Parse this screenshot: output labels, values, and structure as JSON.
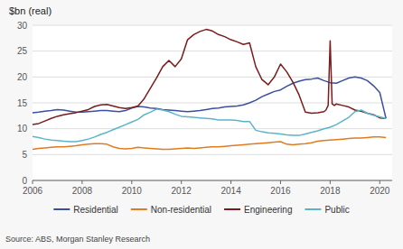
{
  "chart_data": {
    "type": "line",
    "title": "$bn (real)",
    "source": "Source: ABS, Morgan Stanley Research",
    "xlim": [
      2006,
      2020.5
    ],
    "ylim": [
      0,
      30
    ],
    "xticks": [
      2006,
      2008,
      2010,
      2012,
      2014,
      2016,
      2018,
      2020
    ],
    "yticks": [
      0,
      5,
      10,
      15,
      20,
      25,
      30
    ],
    "grid": true,
    "legend": "bottom",
    "series": [
      {
        "name": "Residential",
        "color": "#3a4fa0",
        "x": [
          2006.0,
          2006.25,
          2006.5,
          2006.75,
          2007.0,
          2007.25,
          2007.5,
          2007.75,
          2008.0,
          2008.25,
          2008.5,
          2008.75,
          2009.0,
          2009.25,
          2009.5,
          2009.75,
          2010.0,
          2010.25,
          2010.5,
          2010.75,
          2011.0,
          2011.25,
          2011.5,
          2011.75,
          2012.0,
          2012.25,
          2012.5,
          2012.75,
          2013.0,
          2013.25,
          2013.5,
          2013.75,
          2014.0,
          2014.25,
          2014.5,
          2014.75,
          2015.0,
          2015.25,
          2015.5,
          2015.75,
          2016.0,
          2016.25,
          2016.5,
          2016.75,
          2017.0,
          2017.25,
          2017.5,
          2017.75,
          2018.0,
          2018.25,
          2018.5,
          2018.75,
          2019.0,
          2019.25,
          2019.5,
          2019.75,
          2020.0,
          2020.25
        ],
        "values": [
          13.1,
          13.2,
          13.4,
          13.5,
          13.7,
          13.6,
          13.4,
          13.2,
          13.2,
          13.3,
          13.4,
          13.5,
          13.5,
          13.4,
          13.3,
          13.5,
          14.0,
          14.3,
          14.2,
          14.0,
          13.9,
          13.7,
          13.6,
          13.5,
          13.4,
          13.3,
          13.4,
          13.5,
          13.7,
          13.9,
          14.0,
          14.2,
          14.3,
          14.4,
          14.6,
          15.0,
          15.5,
          16.2,
          16.7,
          17.2,
          17.5,
          18.2,
          18.8,
          19.2,
          19.5,
          19.6,
          19.8,
          19.3,
          18.9,
          18.8,
          19.3,
          19.8,
          20.0,
          19.8,
          19.3,
          18.3,
          17.0,
          12.0
        ]
      },
      {
        "name": "Non-residential",
        "color": "#e07b20",
        "x": [
          2006.0,
          2006.25,
          2006.5,
          2006.75,
          2007.0,
          2007.25,
          2007.5,
          2007.75,
          2008.0,
          2008.25,
          2008.5,
          2008.75,
          2009.0,
          2009.25,
          2009.5,
          2009.75,
          2010.0,
          2010.25,
          2010.5,
          2010.75,
          2011.0,
          2011.25,
          2011.5,
          2011.75,
          2012.0,
          2012.25,
          2012.5,
          2012.75,
          2013.0,
          2013.25,
          2013.5,
          2013.75,
          2014.0,
          2014.25,
          2014.5,
          2014.75,
          2015.0,
          2015.25,
          2015.5,
          2015.75,
          2016.0,
          2016.25,
          2016.5,
          2016.75,
          2017.0,
          2017.25,
          2017.5,
          2017.75,
          2018.0,
          2018.25,
          2018.5,
          2018.75,
          2019.0,
          2019.25,
          2019.5,
          2019.75,
          2020.0,
          2020.25
        ],
        "values": [
          6.0,
          6.2,
          6.3,
          6.4,
          6.5,
          6.5,
          6.6,
          6.7,
          6.9,
          7.0,
          7.1,
          7.1,
          7.0,
          6.5,
          6.2,
          6.1,
          6.2,
          6.4,
          6.3,
          6.2,
          6.1,
          6.0,
          6.0,
          6.1,
          6.2,
          6.3,
          6.2,
          6.3,
          6.4,
          6.5,
          6.5,
          6.6,
          6.7,
          6.8,
          6.9,
          7.0,
          7.1,
          7.2,
          7.3,
          7.4,
          7.5,
          7.0,
          6.9,
          7.0,
          7.1,
          7.3,
          7.6,
          7.7,
          7.8,
          7.9,
          8.0,
          8.1,
          8.2,
          8.2,
          8.3,
          8.4,
          8.4,
          8.3
        ]
      },
      {
        "name": "Engineering",
        "color": "#7a1c1c",
        "x": [
          2006.0,
          2006.25,
          2006.5,
          2006.75,
          2007.0,
          2007.25,
          2007.5,
          2007.75,
          2008.0,
          2008.25,
          2008.5,
          2008.75,
          2009.0,
          2009.25,
          2009.5,
          2009.75,
          2010.0,
          2010.25,
          2010.5,
          2010.75,
          2011.0,
          2011.25,
          2011.5,
          2011.75,
          2012.0,
          2012.25,
          2012.5,
          2012.75,
          2013.0,
          2013.25,
          2013.5,
          2013.75,
          2014.0,
          2014.25,
          2014.5,
          2014.75,
          2015.0,
          2015.25,
          2015.5,
          2015.75,
          2016.0,
          2016.25,
          2016.5,
          2016.75,
          2017.0,
          2017.25,
          2017.5,
          2017.75,
          2017.83,
          2017.92,
          2018.0,
          2018.08,
          2018.17,
          2018.25,
          2018.5,
          2018.75,
          2019.0,
          2019.25,
          2019.5,
          2019.75,
          2020.0,
          2020.25
        ],
        "values": [
          10.8,
          11.0,
          11.5,
          12.0,
          12.4,
          12.7,
          12.9,
          13.1,
          13.4,
          13.7,
          14.3,
          14.6,
          14.7,
          14.4,
          14.1,
          13.9,
          14.1,
          14.4,
          15.8,
          17.8,
          19.8,
          22.0,
          23.2,
          22.0,
          23.5,
          27.2,
          28.2,
          28.8,
          29.2,
          28.9,
          28.2,
          27.8,
          27.2,
          26.8,
          26.3,
          26.6,
          22.0,
          19.5,
          18.5,
          20.0,
          22.5,
          21.0,
          19.0,
          16.5,
          13.2,
          13.0,
          13.1,
          13.3,
          13.6,
          14.5,
          27.0,
          14.8,
          14.5,
          14.8,
          14.5,
          14.2,
          13.6,
          13.4,
          13.0,
          12.7,
          12.1,
          12.0
        ]
      },
      {
        "name": "Public",
        "color": "#5bb5c8",
        "x": [
          2006.0,
          2006.25,
          2006.5,
          2006.75,
          2007.0,
          2007.25,
          2007.5,
          2007.75,
          2008.0,
          2008.25,
          2008.5,
          2008.75,
          2009.0,
          2009.25,
          2009.5,
          2009.75,
          2010.0,
          2010.25,
          2010.5,
          2010.75,
          2011.0,
          2011.25,
          2011.5,
          2011.75,
          2012.0,
          2012.25,
          2012.5,
          2012.75,
          2013.0,
          2013.25,
          2013.5,
          2013.75,
          2014.0,
          2014.25,
          2014.5,
          2014.75,
          2015.0,
          2015.25,
          2015.5,
          2015.75,
          2016.0,
          2016.25,
          2016.5,
          2016.75,
          2017.0,
          2017.25,
          2017.5,
          2017.75,
          2018.0,
          2018.25,
          2018.5,
          2018.75,
          2019.0,
          2019.25,
          2019.5,
          2019.75,
          2020.0,
          2020.25
        ],
        "values": [
          8.5,
          8.3,
          8.0,
          7.8,
          7.7,
          7.6,
          7.5,
          7.5,
          7.7,
          8.0,
          8.4,
          8.9,
          9.3,
          9.8,
          10.3,
          10.8,
          11.3,
          11.8,
          12.7,
          13.2,
          13.8,
          13.6,
          13.3,
          12.8,
          12.4,
          12.3,
          12.2,
          12.1,
          12.0,
          11.9,
          11.7,
          11.7,
          11.7,
          11.6,
          11.4,
          11.4,
          9.7,
          9.4,
          9.2,
          9.1,
          9.0,
          8.8,
          8.7,
          8.7,
          9.0,
          9.3,
          9.6,
          10.0,
          10.3,
          10.8,
          11.5,
          12.2,
          13.3,
          13.6,
          13.0,
          12.6,
          12.3,
          12.0
        ]
      }
    ]
  }
}
